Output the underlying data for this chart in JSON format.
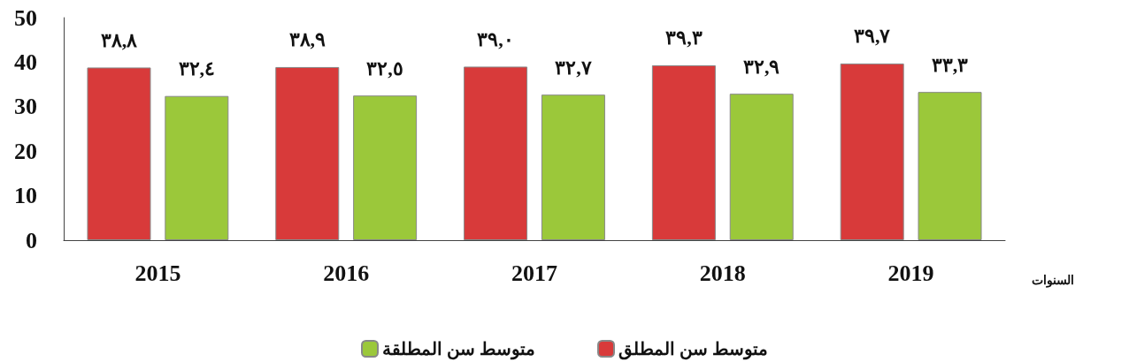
{
  "chart_data": {
    "type": "bar",
    "xlabel": "السنوات",
    "categories": [
      "2015",
      "2016",
      "2017",
      "2018",
      "2019"
    ],
    "series": [
      {
        "name": "متوسط سن المطلق",
        "color": "#d83a3a",
        "values": [
          38.8,
          38.9,
          39.0,
          39.3,
          39.7
        ],
        "value_labels": [
          "٣٨,٨",
          "٣٨,٩",
          "٣٩,٠",
          "٣٩,٣",
          "٣٩,٧"
        ]
      },
      {
        "name": "متوسط سن المطلقة",
        "color": "#9bc83a",
        "values": [
          32.4,
          32.5,
          32.7,
          32.9,
          33.3
        ],
        "value_labels": [
          "٣٢,٤",
          "٣٢,٥",
          "٣٢,٧",
          "٣٢,٩",
          "٣٣,٣"
        ]
      }
    ],
    "ylim": [
      0,
      50
    ],
    "yticks": [
      0,
      10,
      20,
      30,
      40,
      50
    ],
    "grid": false,
    "legend": "bottom"
  }
}
